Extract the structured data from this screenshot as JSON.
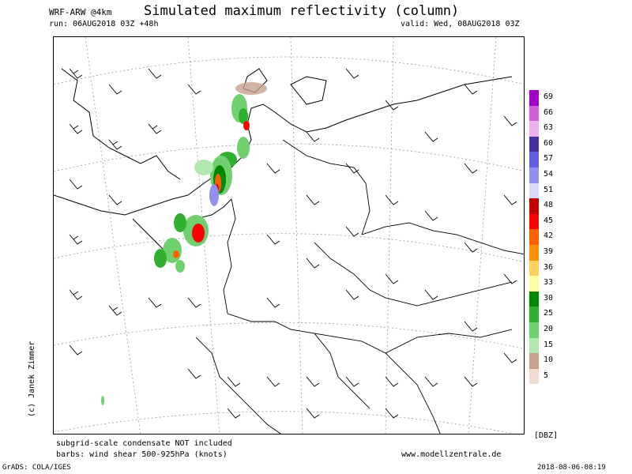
{
  "header": {
    "model": "WRF-ARW @4km",
    "title": "Simulated maximum reflectivity (column)",
    "run": "run: 06AUG2018 03Z +48h",
    "valid": "valid: Wed, 08AUG2018 03Z"
  },
  "side_credit": "(c) Janek Zimmer",
  "footer": {
    "note1": "subgrid-scale condensate NOT included",
    "note2": "barbs: wind shear 500-925hPa (knots)",
    "website": "www.modellzentrale.de",
    "software": "GrADS: COLA/IGES",
    "timestamp": "2018-08-06-08:19"
  },
  "colorbar": {
    "unit": "[DBZ]",
    "levels": [
      "69",
      "66",
      "63",
      "60",
      "57",
      "54",
      "51",
      "48",
      "45",
      "42",
      "39",
      "36",
      "33",
      "30",
      "25",
      "20",
      "15",
      "10",
      "5"
    ],
    "colors": [
      "#a000c8",
      "#d060d8",
      "#f0b0f0",
      "#4030a0",
      "#6060e0",
      "#9090f0",
      "#d8d8f8",
      "#c00000",
      "#ff0000",
      "#ff6000",
      "#ff9000",
      "#ffd060",
      "#ffffa0",
      "#008800",
      "#30b030",
      "#70d070",
      "#b0e8b0",
      "#c8a090",
      "#f0dcd0"
    ]
  }
}
